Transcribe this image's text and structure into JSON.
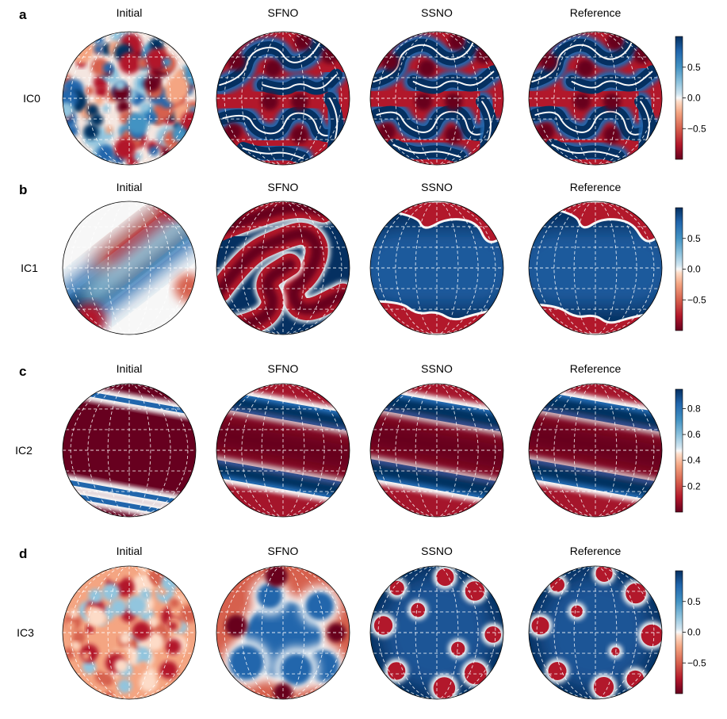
{
  "figure": {
    "columns": [
      "Initial",
      "SFNO",
      "SSNO",
      "Reference"
    ],
    "colors": {
      "red": "#67001f",
      "mid": "#f7f7f7",
      "blue": "#053061",
      "gridline": "#ffffff",
      "outline": "#000000"
    }
  },
  "chart_data": [
    {
      "type": "heatmap",
      "panel": "a",
      "row_label": "IC0",
      "columns": [
        "Initial",
        "SFNO",
        "SSNO",
        "Reference"
      ],
      "field_pattern": "turbulent small-scale blobs evolving into large red/blue filaments",
      "colorbar": {
        "range": [
          -1,
          1
        ],
        "ticks": [
          0.5,
          0.0,
          -0.5
        ],
        "tick_labels": [
          "0.5",
          "0.0",
          "−0.5"
        ],
        "colormap": "RdBu"
      }
    },
    {
      "type": "heatmap",
      "panel": "b",
      "row_label": "IC1",
      "columns": [
        "Initial",
        "SFNO",
        "SSNO",
        "Reference"
      ],
      "field_pattern": "diagonal smooth bands; SFNO shows S-shaped red band, SSNO and Reference mostly blue with red caps",
      "colorbar": {
        "range": [
          -1,
          1
        ],
        "ticks": [
          0.5,
          0.0,
          -0.5
        ],
        "tick_labels": [
          "0.5",
          "0.0",
          "−0.5"
        ],
        "colormap": "RdBu"
      }
    },
    {
      "type": "heatmap",
      "panel": "c",
      "row_label": "IC2",
      "columns": [
        "Initial",
        "SFNO",
        "SSNO",
        "Reference"
      ],
      "field_pattern": "tilted zonal stripes, thin blue bands on red background widening over time",
      "colorbar": {
        "range": [
          0,
          0.95
        ],
        "ticks": [
          0.8,
          0.6,
          0.4,
          0.2
        ],
        "tick_labels": [
          "0.8",
          "0.6",
          "0.4",
          "0.2"
        ],
        "colormap": "RdBu"
      }
    },
    {
      "type": "heatmap",
      "panel": "d",
      "row_label": "IC3",
      "columns": [
        "Initial",
        "SFNO",
        "SSNO",
        "Reference"
      ],
      "field_pattern": "noisy light-red field; SFNO mixed red/blue blobs; SSNO and Reference blue with red islands",
      "colorbar": {
        "range": [
          -1,
          1
        ],
        "ticks": [
          0.5,
          0.0,
          -0.5
        ],
        "tick_labels": [
          "0.5",
          "0.0",
          "−0.5"
        ],
        "colormap": "RdBu"
      }
    }
  ]
}
